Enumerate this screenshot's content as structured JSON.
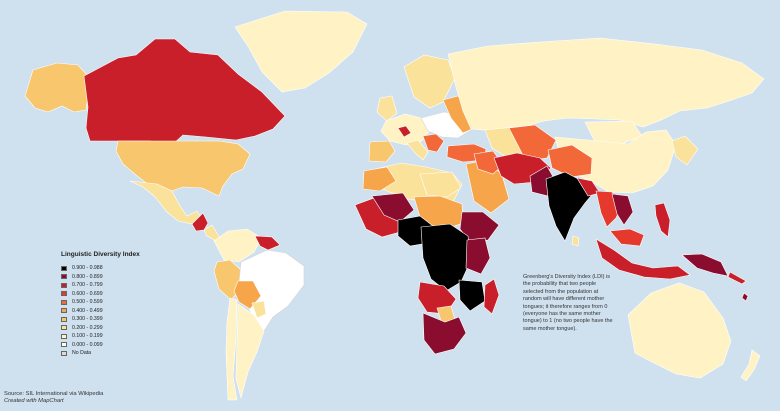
{
  "legend": {
    "title": "Linguistic Diversity Index",
    "items": [
      {
        "label": "0.900 - 0.988",
        "color": "#000000"
      },
      {
        "label": "0.800 - 0.899",
        "color": "#8a0d2f"
      },
      {
        "label": "0.700 - 0.799",
        "color": "#c91f2a"
      },
      {
        "label": "0.600 - 0.699",
        "color": "#e5392d"
      },
      {
        "label": "0.500 - 0.599",
        "color": "#f36838"
      },
      {
        "label": "0.400 - 0.499",
        "color": "#f7a54a"
      },
      {
        "label": "0.300 - 0.399",
        "color": "#f8c66c"
      },
      {
        "label": "0.200 - 0.299",
        "color": "#fbe29a"
      },
      {
        "label": "0.100 - 0.199",
        "color": "#fff2c5"
      },
      {
        "label": "0.000 - 0.099",
        "color": "#ffffff"
      },
      {
        "label": "No Data",
        "color": "#d9d9d9"
      }
    ]
  },
  "note": {
    "text": "Greenberg's Diversity Index (LDI) is the probability that two people selected from the population at random will have different mother tongues; it therefore ranges from 0 (everyone has the same mother tongue) to 1 (no two people have the same mother tongue)."
  },
  "credits": {
    "source": "Source: SIL International via Wikipedia",
    "created_with": "Created with MapChart"
  },
  "colors": {
    "ocean": "#cfe0ee",
    "border": "#ffffff",
    "black": "#000000",
    "c800": "#8a0d2f",
    "c700": "#c91f2a",
    "c600": "#e5392d",
    "c500": "#f36838",
    "c400": "#f7a54a",
    "c300": "#f8c66c",
    "c200": "#fbe29a",
    "c100": "#fff2c5",
    "c000": "#ffffff",
    "nodata": "#d9d9d9"
  }
}
